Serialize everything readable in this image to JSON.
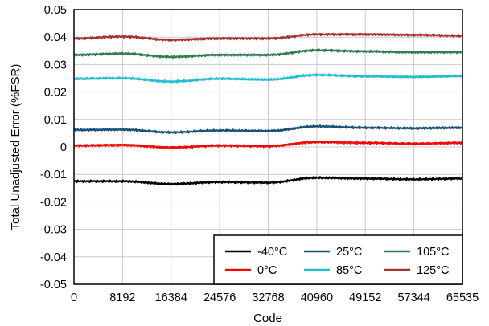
{
  "chart_data": {
    "type": "line",
    "xlabel": "Code",
    "ylabel": "Total Unadjusted Error (%FSR)",
    "xlim": [
      0,
      65535
    ],
    "ylim": [
      -0.05,
      0.05
    ],
    "x_ticks": [
      "0",
      "8192",
      "16384",
      "24576",
      "32768",
      "40960",
      "49152",
      "57344",
      "65535"
    ],
    "x_tick_values": [
      0,
      8192,
      16384,
      24576,
      32768,
      40960,
      49152,
      57344,
      65535
    ],
    "y_ticks": [
      "0.05",
      "0.04",
      "0.03",
      "0.02",
      "0.01",
      "0",
      "-0.01",
      "-0.02",
      "-0.03",
      "-0.04",
      "-0.05"
    ],
    "y_tick_values": [
      0.05,
      0.04,
      0.03,
      0.02,
      0.01,
      0,
      -0.01,
      -0.02,
      -0.03,
      -0.04,
      -0.05
    ],
    "grid": true,
    "legend_position": "bottom-right",
    "x": [
      0,
      8192,
      16384,
      24576,
      32768,
      40960,
      49152,
      57344,
      65535
    ],
    "series": [
      {
        "name": "-40°C",
        "color": "#000000",
        "values": [
          -0.0125,
          -0.0125,
          -0.0135,
          -0.0128,
          -0.013,
          -0.0112,
          -0.0115,
          -0.0118,
          -0.0115
        ]
      },
      {
        "name": "0°C",
        "color": "#ff0000",
        "values": [
          0.0005,
          0.0007,
          -0.0002,
          0.0005,
          0.0003,
          0.0018,
          0.0015,
          0.0012,
          0.0015
        ]
      },
      {
        "name": "25°C",
        "color": "#1a5276",
        "values": [
          0.0062,
          0.0063,
          0.0053,
          0.006,
          0.0058,
          0.0075,
          0.007,
          0.0068,
          0.007
        ]
      },
      {
        "name": "85°C",
        "color": "#1fbfd0",
        "values": [
          0.0248,
          0.025,
          0.0238,
          0.0248,
          0.0245,
          0.0262,
          0.0257,
          0.0255,
          0.0258
        ]
      },
      {
        "name": "105°C",
        "color": "#2e7d4f",
        "values": [
          0.0335,
          0.034,
          0.0328,
          0.0335,
          0.0335,
          0.0352,
          0.0348,
          0.0345,
          0.0345
        ]
      },
      {
        "name": "125°C",
        "color": "#a83232",
        "values": [
          0.0395,
          0.0402,
          0.039,
          0.0395,
          0.0395,
          0.041,
          0.041,
          0.0408,
          0.0405
        ]
      }
    ]
  }
}
